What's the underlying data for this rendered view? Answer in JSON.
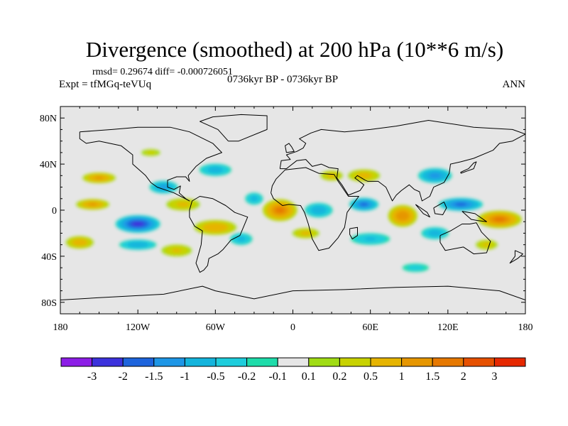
{
  "header": {
    "title": "Divergence (smoothed) at 200 hPa (10**6 m/s)",
    "stats": "rmsd= 0.29674 diff= -0.000726051",
    "experiment": "Expt = tfMGq-teVUq",
    "period": "0736kyr BP - 0736kyr BP",
    "season": "ANN"
  },
  "chart_data": {
    "type": "heatmap",
    "title": "Divergence (smoothed) at 200 hPa (10**6 m/s)",
    "projection": "cylindrical-equidistant",
    "xlim": [
      -180,
      180
    ],
    "ylim": [
      -90,
      90
    ],
    "x_ticks": [
      {
        "value": -180,
        "label": "180"
      },
      {
        "value": -120,
        "label": "120W"
      },
      {
        "value": -60,
        "label": "60W"
      },
      {
        "value": 0,
        "label": "0"
      },
      {
        "value": 60,
        "label": "60E"
      },
      {
        "value": 120,
        "label": "120E"
      },
      {
        "value": 180,
        "label": "180"
      }
    ],
    "y_ticks": [
      {
        "value": 80,
        "label": "80N"
      },
      {
        "value": 40,
        "label": "40N"
      },
      {
        "value": 0,
        "label": "0"
      },
      {
        "value": -40,
        "label": "40S"
      },
      {
        "value": -80,
        "label": "80S"
      }
    ],
    "colorbar": {
      "colors": [
        "#8c1ee6",
        "#3c32dc",
        "#1e64dc",
        "#1e96e6",
        "#14b4dc",
        "#1ecddc",
        "#1edcaa",
        "#e6e6e6",
        "#a0dc14",
        "#c8d200",
        "#e6b400",
        "#e69600",
        "#e67800",
        "#e65000",
        "#e62800"
      ],
      "labels": [
        "-3",
        "-2",
        "-1.5",
        "-1",
        "-0.5",
        "-0.2",
        "-0.1",
        "0.1",
        "0.2",
        "0.5",
        "1",
        "1.5",
        "2",
        "3"
      ]
    },
    "features": [
      {
        "lon": -10,
        "lat": 0,
        "rx": 14,
        "ry": 10,
        "v": 1.5
      },
      {
        "lon": -120,
        "lat": -12,
        "rx": 18,
        "ry": 8,
        "v": -2.2
      },
      {
        "lon": -155,
        "lat": 5,
        "rx": 14,
        "ry": 5,
        "v": 1.0
      },
      {
        "lon": -150,
        "lat": 28,
        "rx": 14,
        "ry": 5,
        "v": 1.0
      },
      {
        "lon": -100,
        "lat": 20,
        "rx": 12,
        "ry": 6,
        "v": -1.0
      },
      {
        "lon": -60,
        "lat": 35,
        "rx": 14,
        "ry": 6,
        "v": -0.7
      },
      {
        "lon": -85,
        "lat": 5,
        "rx": 15,
        "ry": 6,
        "v": 0.6
      },
      {
        "lon": -60,
        "lat": -15,
        "rx": 18,
        "ry": 7,
        "v": 0.9
      },
      {
        "lon": -40,
        "lat": -25,
        "rx": 10,
        "ry": 6,
        "v": -0.6
      },
      {
        "lon": -165,
        "lat": -28,
        "rx": 12,
        "ry": 6,
        "v": 0.8
      },
      {
        "lon": 20,
        "lat": 0,
        "rx": 12,
        "ry": 7,
        "v": -0.8
      },
      {
        "lon": 55,
        "lat": 5,
        "rx": 12,
        "ry": 6,
        "v": -1.5
      },
      {
        "lon": 85,
        "lat": -5,
        "rx": 12,
        "ry": 10,
        "v": 1.4
      },
      {
        "lon": 130,
        "lat": 5,
        "rx": 18,
        "ry": 6,
        "v": -1.6
      },
      {
        "lon": 160,
        "lat": -8,
        "rx": 18,
        "ry": 8,
        "v": 1.5
      },
      {
        "lon": 110,
        "lat": 30,
        "rx": 14,
        "ry": 7,
        "v": -1.2
      },
      {
        "lon": 55,
        "lat": 30,
        "rx": 14,
        "ry": 6,
        "v": 0.7
      },
      {
        "lon": 60,
        "lat": -25,
        "rx": 18,
        "ry": 6,
        "v": -0.5
      },
      {
        "lon": 110,
        "lat": -20,
        "rx": 12,
        "ry": 6,
        "v": -0.7
      },
      {
        "lon": 150,
        "lat": -30,
        "rx": 10,
        "ry": 5,
        "v": 0.5
      },
      {
        "lon": -120,
        "lat": -30,
        "rx": 16,
        "ry": 5,
        "v": -0.8
      },
      {
        "lon": -90,
        "lat": -35,
        "rx": 14,
        "ry": 6,
        "v": 0.5
      },
      {
        "lon": 95,
        "lat": -50,
        "rx": 14,
        "ry": 5,
        "v": -0.3
      },
      {
        "lon": -110,
        "lat": 50,
        "rx": 10,
        "ry": 4,
        "v": 0.3
      },
      {
        "lon": 30,
        "lat": 30,
        "rx": 10,
        "ry": 5,
        "v": 0.6
      },
      {
        "lon": -30,
        "lat": 10,
        "rx": 8,
        "ry": 6,
        "v": -0.6
      },
      {
        "lon": 10,
        "lat": -20,
        "rx": 12,
        "ry": 5,
        "v": 0.6
      }
    ]
  }
}
